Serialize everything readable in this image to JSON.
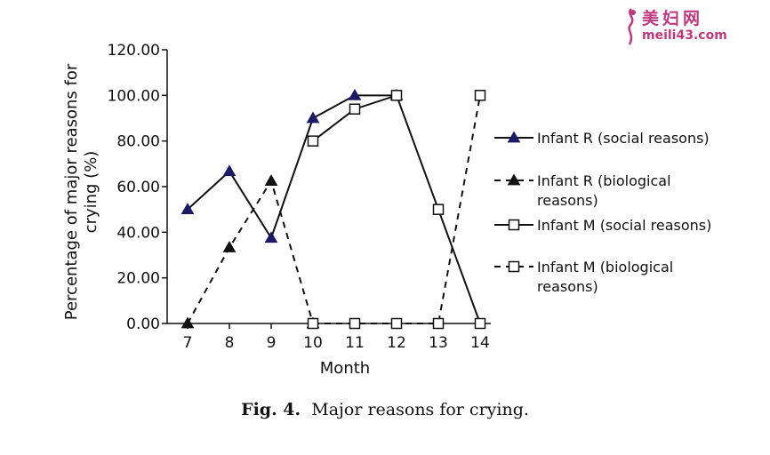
{
  "watermark": {
    "title": "美妇网",
    "url": "meili43.com"
  },
  "caption": {
    "fig_label": "Fig. 4.",
    "text": "Major reasons for crying."
  },
  "chart_data": {
    "type": "line",
    "xlabel": "Month",
    "ylabel_lines": [
      "Percentage of major reasons for",
      "crying (%)"
    ],
    "categories": [
      "7",
      "8",
      "9",
      "10",
      "11",
      "12",
      "13",
      "14"
    ],
    "ylim": [
      0,
      120
    ],
    "yticks": [
      "0.00",
      "20.00",
      "40.00",
      "60.00",
      "80.00",
      "100.00",
      "120.00"
    ],
    "grid": false,
    "legend_position": "right",
    "series": [
      {
        "name": "Infant R (social reasons)",
        "name_lines": [
          "Infant R (social reasons)"
        ],
        "marker": "triangle-filled",
        "dash": "solid",
        "color": "#1a1a66",
        "x": [
          "7",
          "8",
          "9",
          "10",
          "11",
          "12"
        ],
        "values": [
          50,
          66.7,
          37.5,
          90,
          100,
          100
        ]
      },
      {
        "name": "Infant R (biological reasons)",
        "name_lines": [
          "Infant R (biological",
          "reasons)"
        ],
        "marker": "triangle-filled",
        "dash": "dashed",
        "color": "#111111",
        "x": [
          "7",
          "8",
          "9",
          "10"
        ],
        "values": [
          0,
          33.3,
          62.5,
          0
        ]
      },
      {
        "name": "Infant M (social reasons)",
        "name_lines": [
          "Infant M (social reasons)"
        ],
        "marker": "square-open",
        "dash": "solid",
        "color": "#111111",
        "x": [
          "10",
          "11",
          "12",
          "13",
          "14"
        ],
        "values": [
          80,
          94,
          100,
          50,
          0
        ]
      },
      {
        "name": "Infant M (biological reasons)",
        "name_lines": [
          "Infant M (biological",
          "reasons)"
        ],
        "marker": "square-open",
        "dash": "dashed",
        "color": "#111111",
        "x": [
          "10",
          "11",
          "12",
          "13",
          "14"
        ],
        "values": [
          0,
          0,
          0,
          0,
          100
        ]
      }
    ]
  }
}
